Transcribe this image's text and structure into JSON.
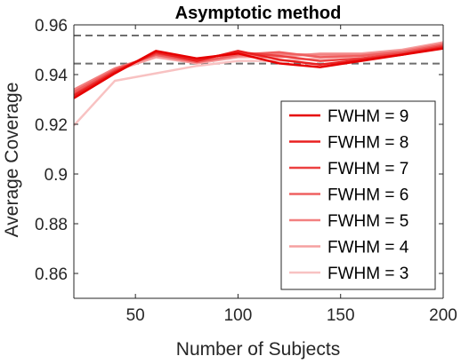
{
  "chart_data": {
    "type": "line",
    "title": "Asymptotic method",
    "xlabel": "Number of Subjects",
    "ylabel": "Average Coverage",
    "xlim": [
      20,
      200
    ],
    "ylim": [
      0.85,
      0.96
    ],
    "xticks": [
      50,
      100,
      150,
      200
    ],
    "xtick_labels": [
      "50",
      "100",
      "150",
      "200"
    ],
    "yticks": [
      0.86,
      0.88,
      0.9,
      0.92,
      0.94,
      0.96
    ],
    "ytick_labels": [
      "0.86",
      "0.88",
      "0.9",
      "0.92",
      "0.94",
      "0.96"
    ],
    "grid": false,
    "legend_position": "bottom-right",
    "reference_lines": [
      0.9444,
      0.9557
    ],
    "x": [
      20,
      40,
      60,
      80,
      100,
      120,
      140,
      160,
      180,
      200
    ],
    "series": [
      {
        "name": "FWHM = 9",
        "color": "#e60000",
        "values": [
          0.9305,
          0.9405,
          0.9495,
          0.9465,
          0.9485,
          0.9445,
          0.943,
          0.9455,
          0.948,
          0.9505
        ]
      },
      {
        "name": "FWHM = 8",
        "color": "#e92020",
        "values": [
          0.9315,
          0.941,
          0.949,
          0.9455,
          0.9495,
          0.946,
          0.944,
          0.946,
          0.948,
          0.951
        ]
      },
      {
        "name": "FWHM = 7",
        "color": "#ec4040",
        "values": [
          0.932,
          0.9415,
          0.9485,
          0.946,
          0.949,
          0.9475,
          0.9455,
          0.9465,
          0.9485,
          0.9515
        ]
      },
      {
        "name": "FWHM = 6",
        "color": "#ef6060",
        "values": [
          0.933,
          0.942,
          0.948,
          0.945,
          0.948,
          0.949,
          0.947,
          0.9475,
          0.949,
          0.952
        ]
      },
      {
        "name": "FWHM = 5",
        "color": "#f28080",
        "values": [
          0.934,
          0.9425,
          0.9478,
          0.945,
          0.9475,
          0.9482,
          0.948,
          0.948,
          0.9495,
          0.9525
        ]
      },
      {
        "name": "FWHM = 4",
        "color": "#f5a0a0",
        "values": [
          0.9335,
          0.9415,
          0.947,
          0.9445,
          0.947,
          0.947,
          0.9485,
          0.9485,
          0.95,
          0.953
        ]
      },
      {
        "name": "FWHM = 3",
        "color": "#f8c2c2",
        "values": [
          0.9195,
          0.9375,
          0.9405,
          0.9435,
          0.9455,
          0.9455,
          0.9465,
          0.9475,
          0.9495,
          0.952
        ]
      }
    ]
  }
}
